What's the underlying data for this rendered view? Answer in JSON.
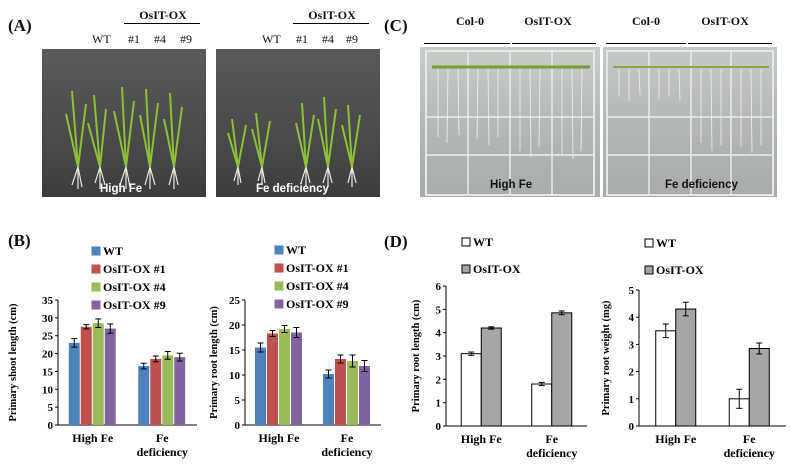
{
  "panel_a": {
    "label": "(A)",
    "group_header": "OsIT-OX",
    "lines": [
      "WT",
      "#1",
      "#4",
      "#9"
    ],
    "left_caption": "High Fe",
    "right_caption": "Fe deficiency"
  },
  "panel_c": {
    "label": "(C)",
    "left_col": "Col-0",
    "right_col": "OsIT-OX",
    "left_caption": "High Fe",
    "right_caption": "Fe deficiency"
  },
  "panel_b": {
    "label": "(B)"
  },
  "panel_d": {
    "label": "(D)"
  },
  "colors": {
    "wt": "#4f81bd",
    "ox1": "#c0504d",
    "ox4": "#9bbb59",
    "ox9": "#8064a2",
    "d_wt": "#ffffff",
    "d_ox": "#a6a6a6"
  },
  "chart_data": [
    {
      "type": "bar",
      "ylabel": "Primary shoot length (cm)",
      "categories": [
        "High Fe",
        "Fe deficiency"
      ],
      "ylim": [
        0,
        35
      ],
      "yticks": [
        0,
        5,
        10,
        15,
        20,
        25,
        30,
        35
      ],
      "series": [
        {
          "name": "WT",
          "values": [
            23.0,
            16.5
          ],
          "errors": [
            1.2,
            0.8
          ]
        },
        {
          "name": "OsIT-OX #1",
          "values": [
            27.5,
            18.5
          ],
          "errors": [
            0.6,
            0.8
          ]
        },
        {
          "name": "OsIT-OX #4",
          "values": [
            28.5,
            19.5
          ],
          "errors": [
            1.2,
            1.1
          ]
        },
        {
          "name": "OsIT-OX #9",
          "values": [
            27.0,
            19.0
          ],
          "errors": [
            1.3,
            1.1
          ]
        }
      ]
    },
    {
      "type": "bar",
      "ylabel": "Primary root length (cm)",
      "categories": [
        "High Fe",
        "Fe deficiency"
      ],
      "ylim": [
        0,
        25
      ],
      "yticks": [
        0,
        5,
        10,
        15,
        20,
        25
      ],
      "series": [
        {
          "name": "WT",
          "values": [
            15.5,
            10.2
          ],
          "errors": [
            0.9,
            0.8
          ]
        },
        {
          "name": "OsIT-OX #1",
          "values": [
            18.3,
            13.2
          ],
          "errors": [
            0.6,
            0.8
          ]
        },
        {
          "name": "OsIT-OX #4",
          "values": [
            19.2,
            12.8
          ],
          "errors": [
            0.7,
            1.2
          ]
        },
        {
          "name": "OsIT-OX #9",
          "values": [
            18.5,
            11.8
          ],
          "errors": [
            1.0,
            1.1
          ]
        }
      ]
    },
    {
      "type": "bar",
      "ylabel": "Primary root length (cm)",
      "categories": [
        "High Fe",
        "Fe deficiency"
      ],
      "ylim": [
        0,
        6
      ],
      "yticks": [
        0,
        1,
        2,
        3,
        4,
        5,
        6
      ],
      "series": [
        {
          "name": "WT",
          "values": [
            3.1,
            1.8
          ],
          "errors": [
            0.07,
            0.07
          ]
        },
        {
          "name": "OsIT-OX",
          "values": [
            4.2,
            4.85
          ],
          "errors": [
            0.05,
            0.08
          ]
        }
      ]
    },
    {
      "type": "bar",
      "ylabel": "Primary root weight (mg)",
      "categories": [
        "High Fe",
        "Fe deficiency"
      ],
      "ylim": [
        0,
        5
      ],
      "yticks": [
        0,
        1,
        2,
        3,
        4,
        5
      ],
      "series": [
        {
          "name": "WT",
          "values": [
            3.5,
            1.0
          ],
          "errors": [
            0.25,
            0.35
          ]
        },
        {
          "name": "OsIT-OX",
          "values": [
            4.3,
            2.85
          ],
          "errors": [
            0.25,
            0.2
          ]
        }
      ]
    }
  ]
}
